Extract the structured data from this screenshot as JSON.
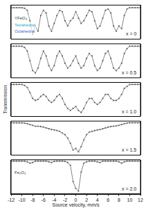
{
  "chart_data": {
    "type": "line",
    "x_label": "Source velocity, mm/s",
    "y_label": "Transmission",
    "xlim": [
      -12,
      12
    ],
    "xticks": [
      -12,
      -10,
      -8,
      -6,
      -4,
      -2,
      0,
      2,
      4,
      6,
      8,
      10,
      12
    ],
    "tick_labels": "x",
    "grid": false,
    "x": [
      -12,
      -11.5,
      -11,
      -10.5,
      -10,
      -9.5,
      -9,
      -8.5,
      -8,
      -7.5,
      -7,
      -6.5,
      -6,
      -5.5,
      -5,
      -4.5,
      -4,
      -3.5,
      -3,
      -2.5,
      -2,
      -1.5,
      -1,
      -0.5,
      0,
      0.5,
      1,
      1.5,
      2,
      2.5,
      3,
      3.5,
      4,
      4.5,
      5,
      5.5,
      6,
      6.5,
      7,
      7.5,
      8,
      8.5,
      9,
      9.5,
      10,
      10.5,
      11,
      11.5,
      12
    ],
    "panels": [
      {
        "label": "x = 0",
        "ylim": [
          0.88,
          1.01
        ],
        "series": [
          {
            "color": "#666666",
            "marker": "circle",
            "line_style": "solid",
            "values": [
              1,
              1,
              1,
              1,
              1,
              0.998,
              0.99,
              0.95,
              0.9,
              0.93,
              0.91,
              0.97,
              0.99,
              0.98,
              0.93,
              0.91,
              0.94,
              0.97,
              0.99,
              0.985,
              0.95,
              0.93,
              0.95,
              0.96,
              0.985,
              0.96,
              0.94,
              0.95,
              0.97,
              0.99,
              0.985,
              0.95,
              0.92,
              0.93,
              0.96,
              0.99,
              0.995,
              0.98,
              0.93,
              0.91,
              0.93,
              0.92,
              0.97,
              0.995,
              1,
              1,
              1,
              1,
              1
            ]
          }
        ]
      },
      {
        "label": "x = 0.5",
        "ylim": [
          0.87,
          1.01
        ],
        "series": [
          {
            "color": "#666666",
            "marker": "circle",
            "line_style": "solid",
            "values": [
              1,
              1,
              1,
              1,
              1,
              0.995,
              0.98,
              0.94,
              0.9,
              0.89,
              0.91,
              0.95,
              0.98,
              0.96,
              0.92,
              0.9,
              0.92,
              0.96,
              0.98,
              0.96,
              0.93,
              0.91,
              0.92,
              0.94,
              0.96,
              0.93,
              0.91,
              0.92,
              0.95,
              0.97,
              0.96,
              0.92,
              0.9,
              0.91,
              0.94,
              0.97,
              0.98,
              0.95,
              0.91,
              0.9,
              0.91,
              0.93,
              0.97,
              0.99,
              1,
              1,
              1,
              1,
              1
            ]
          }
        ]
      },
      {
        "label": "x = 1.0",
        "ylim": [
          0.84,
          1.01
        ],
        "series": [
          {
            "color": "#666666",
            "marker": "circle",
            "line_style": "solid",
            "values": [
              1,
              1,
              1,
              1,
              1,
              0.995,
              0.985,
              0.96,
              0.93,
              0.92,
              0.925,
              0.94,
              0.95,
              0.94,
              0.92,
              0.91,
              0.92,
              0.94,
              0.95,
              0.93,
              0.9,
              0.88,
              0.87,
              0.88,
              0.89,
              0.87,
              0.86,
              0.88,
              0.91,
              0.93,
              0.93,
              0.91,
              0.9,
              0.91,
              0.93,
              0.95,
              0.95,
              0.93,
              0.92,
              0.92,
              0.93,
              0.95,
              0.98,
              0.99,
              1,
              1,
              1,
              1,
              1
            ]
          }
        ]
      },
      {
        "label": "x = 1.5",
        "ylim": [
          0.81,
          1.01
        ],
        "series": [
          {
            "color": "#666666",
            "marker": "circle",
            "line_style": "solid",
            "values": [
              1,
              1,
              1,
              1,
              1,
              0.998,
              0.995,
              0.99,
              0.985,
              0.98,
              0.98,
              0.978,
              0.975,
              0.97,
              0.965,
              0.96,
              0.958,
              0.955,
              0.95,
              0.94,
              0.93,
              0.91,
              0.88,
              0.84,
              0.85,
              0.83,
              0.86,
              0.9,
              0.93,
              0.945,
              0.95,
              0.955,
              0.958,
              0.96,
              0.965,
              0.97,
              0.975,
              0.978,
              0.98,
              0.982,
              0.985,
              0.99,
              0.995,
              0.998,
              1,
              1,
              1,
              1,
              1
            ]
          }
        ]
      },
      {
        "label": "x = 2.0",
        "ylim": [
          0.76,
          1.01
        ],
        "series": [
          {
            "color": "#666666",
            "marker": "circle",
            "line_style": "solid",
            "values": [
              1,
              1,
              1,
              1,
              1,
              1,
              0.995,
              0.985,
              0.99,
              1,
              1,
              1,
              1,
              1,
              0.995,
              0.99,
              0.998,
              1,
              1,
              1,
              0.998,
              0.99,
              0.97,
              0.85,
              0.8,
              0.78,
              0.92,
              0.985,
              0.995,
              1,
              1,
              1,
              0.995,
              0.99,
              1,
              1,
              1,
              1,
              1,
              1,
              0.995,
              0.985,
              0.995,
              1,
              1,
              1,
              1,
              1,
              1
            ]
          }
        ]
      }
    ],
    "annotations": [
      {
        "text": "YFeO₃",
        "panel": 0,
        "color": "#333333"
      },
      {
        "text": "Tetrahedral",
        "panel": 0,
        "color": "#2aa7b8"
      },
      {
        "text": "Octahedral",
        "panel": 0,
        "color": "#3a5fcd"
      },
      {
        "text": "Fe₂O₃",
        "panel": 4,
        "color": "#333333"
      }
    ]
  }
}
